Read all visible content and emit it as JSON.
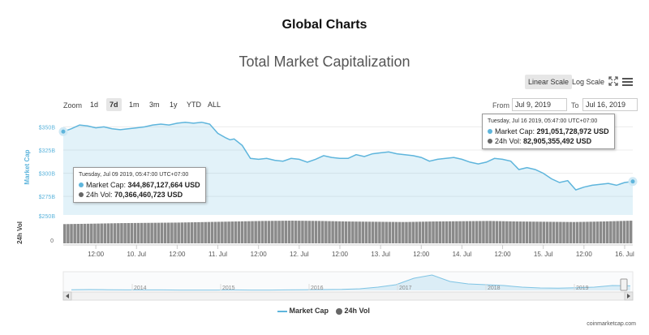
{
  "page_title": "Global Charts",
  "scale_buttons": {
    "linear": "Linear Scale",
    "log": "Log Scale"
  },
  "zoom": {
    "label": "Zoom",
    "options": [
      "1d",
      "7d",
      "1m",
      "3m",
      "1y",
      "YTD",
      "ALL"
    ],
    "selected": "7d"
  },
  "range": {
    "from_label": "From",
    "from_value": "Jul 9, 2019",
    "to_label": "To",
    "to_value": "Jul 16, 2019"
  },
  "tooltips": {
    "left": {
      "date": "Tuesday, Jul 09 2019, 05:47:00 UTC+07:00",
      "cap_label": "Market Cap:",
      "cap_value": "344,867,127,664 USD",
      "vol_label": "24h Vol:",
      "vol_value": "70,366,460,723 USD"
    },
    "right": {
      "date": "Tuesday, Jul 16 2019, 05:47:00 UTC+07:00",
      "cap_label": "Market Cap:",
      "cap_value": "291,051,728,972 USD",
      "vol_label": "24h Vol:",
      "vol_value": "82,905,355,492 USD"
    }
  },
  "colors": {
    "market_cap": "#5eb5dc",
    "volume": "#666666",
    "navigator": "#7fc4e4"
  },
  "credit": "coinmarketcap.com",
  "chart_data": {
    "type": "area",
    "title": "Total Market Capitalization",
    "ylabel": "Market Cap",
    "y_ticks": [
      "$350B",
      "$325B",
      "$300B",
      "$275B"
    ],
    "ylim": [
      255,
      360
    ],
    "x_ticks": [
      "12:00",
      "10. Jul",
      "12:00",
      "11. Jul",
      "12:00",
      "12. Jul",
      "12:00",
      "13. Jul",
      "12:00",
      "14. Jul",
      "12:00",
      "15. Jul",
      "12:00",
      "16. Jul"
    ],
    "series": [
      {
        "name": "Market Cap",
        "x_days": [
          0,
          0.1,
          0.2,
          0.3,
          0.4,
          0.5,
          0.6,
          0.7,
          0.8,
          0.9,
          1.0,
          1.1,
          1.2,
          1.3,
          1.4,
          1.5,
          1.6,
          1.7,
          1.8,
          1.9,
          2.0,
          2.05,
          2.1,
          2.2,
          2.3,
          2.4,
          2.5,
          2.6,
          2.7,
          2.8,
          2.9,
          3.0,
          3.1,
          3.2,
          3.3,
          3.4,
          3.5,
          3.6,
          3.7,
          3.8,
          3.9,
          4.0,
          4.1,
          4.2,
          4.3,
          4.4,
          4.5,
          4.6,
          4.7,
          4.8,
          4.9,
          5.0,
          5.1,
          5.2,
          5.3,
          5.4,
          5.5,
          5.6,
          5.7,
          5.8,
          5.9,
          6.0,
          6.1,
          6.2,
          6.3,
          6.4,
          6.5,
          6.6,
          6.7,
          6.8,
          6.9,
          7.0
        ],
        "values": [
          344.9,
          348,
          352,
          351,
          349,
          350,
          348,
          347,
          348,
          349,
          350,
          352,
          353,
          352,
          354,
          355,
          354,
          355,
          353,
          343,
          338,
          336,
          337,
          330,
          316,
          315,
          316,
          314,
          313,
          316,
          315,
          312,
          315,
          319,
          317,
          316,
          316,
          320,
          318,
          321,
          322,
          323,
          321,
          320,
          319,
          317,
          313,
          315,
          316,
          317,
          315,
          312,
          310,
          312,
          316,
          315,
          313,
          304,
          306,
          304,
          300,
          294,
          290,
          292,
          282,
          285,
          287,
          288,
          289,
          287,
          290,
          291.1
        ]
      },
      {
        "name": "24h Vol",
        "values": [
          70.4,
          72,
          74,
          75,
          76,
          78,
          80,
          82,
          83,
          82,
          80,
          79,
          78,
          80,
          81,
          82,
          80,
          79,
          78,
          80,
          82.9
        ]
      }
    ],
    "navigator_years": [
      "2014",
      "2015",
      "2016",
      "2017",
      "2018",
      "2019"
    ],
    "legend": [
      "Market Cap",
      "24h Vol"
    ],
    "legend_position": "bottom-center"
  }
}
